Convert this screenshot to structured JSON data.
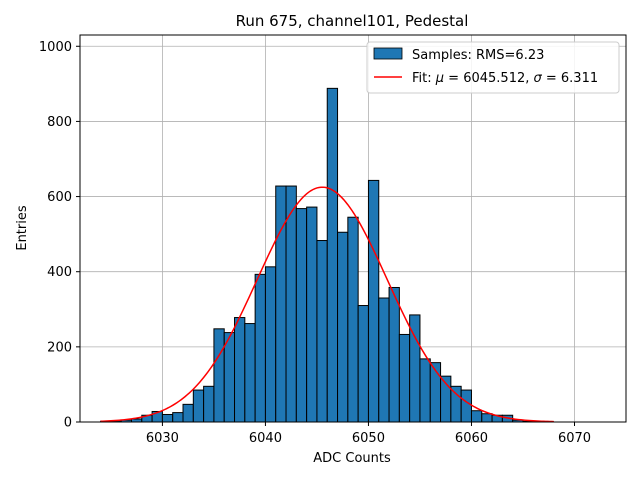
{
  "chart_data": {
    "type": "bar",
    "title": "Run 675, channel101, Pedestal",
    "xlabel": "ADC Counts",
    "ylabel": "Entries",
    "xlim": [
      6022,
      6075
    ],
    "ylim": [
      0,
      1030
    ],
    "x_ticks": [
      6030,
      6040,
      6050,
      6060,
      6070
    ],
    "y_ticks": [
      0,
      200,
      400,
      600,
      800,
      1000
    ],
    "grid": true,
    "legend_position": "top-right",
    "histogram": {
      "name": "Samples: RMS=6.23",
      "color": "#1f77b4",
      "bin_start": 6024,
      "bin_width": 1,
      "counts": [
        2,
        3,
        5,
        8,
        18,
        28,
        20,
        25,
        47,
        85,
        95,
        248,
        238,
        278,
        262,
        393,
        413,
        628,
        628,
        568,
        572,
        483,
        888,
        505,
        545,
        310,
        643,
        330,
        358,
        233,
        285,
        168,
        158,
        122,
        95,
        85,
        30,
        22,
        18,
        18,
        5,
        2
      ]
    },
    "fit": {
      "name_prefix": "Fit: ",
      "name_mu": "μ",
      "name_mid": " = 6045.512, ",
      "name_sigma": "σ",
      "name_end": " = 6.311",
      "color": "#ff0000",
      "mu": 6045.512,
      "sigma": 6.311,
      "amplitude": 625,
      "x_range": [
        6024,
        6068
      ]
    }
  }
}
